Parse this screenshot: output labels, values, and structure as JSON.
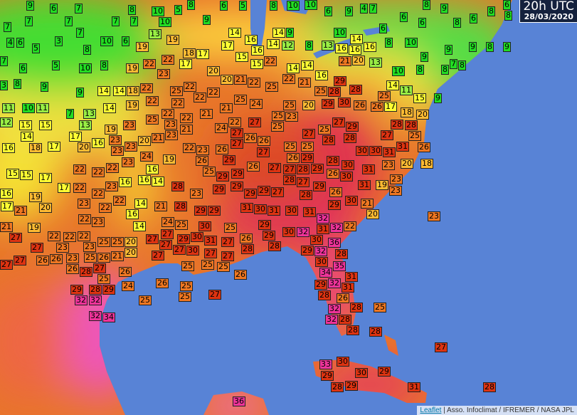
{
  "map": {
    "colors": {
      "ocean": "#5883d6",
      "cold": "#22dd22",
      "cool": "#99ee44",
      "mild": "#ffff33",
      "warm": "#ffbb33",
      "hot": "#ee7722",
      "very_hot": "#dd3311",
      "extreme": "#ee3399"
    },
    "timestamp": {
      "time": "20h UTC",
      "date": "28/03/2020"
    },
    "attribution": {
      "link": "Leaflet",
      "separator": " | ",
      "text": "Asso. Infoclimat / IFREMER / NASA JPL"
    },
    "temperature_unit_visible": false,
    "stations": [
      "9",
      "6",
      "7",
      "8",
      "10",
      "5",
      "8",
      "6",
      "5",
      "8",
      "10",
      "10",
      "6",
      "9",
      "4",
      "7",
      "8",
      "9",
      "6",
      "7",
      "7",
      "7",
      "7",
      "7",
      "10",
      "9",
      "14",
      "14",
      "9",
      "10",
      "14",
      "6",
      "6",
      "6",
      "8",
      "6",
      "8",
      "8",
      "4",
      "6",
      "5",
      "3",
      "7",
      "8",
      "10",
      "6",
      "19",
      "13",
      "19",
      "18",
      "17",
      "17",
      "16",
      "16",
      "14",
      "12",
      "8",
      "13",
      "16",
      "16",
      "16",
      "8",
      "10",
      "9",
      "9",
      "7",
      "8",
      "9",
      "8",
      "9",
      "7",
      "6",
      "5",
      "10",
      "8",
      "19",
      "22",
      "22",
      "17",
      "20",
      "15",
      "15",
      "22",
      "14",
      "14",
      "16",
      "21",
      "20",
      "13",
      "10",
      "8",
      "8",
      "3",
      "8",
      "9",
      "9",
      "14",
      "14",
      "18",
      "22",
      "23",
      "25",
      "22",
      "22",
      "22",
      "20",
      "21",
      "22",
      "25",
      "22",
      "21",
      "25",
      "28",
      "29",
      "28",
      "25",
      "14",
      "11",
      "15",
      "9",
      "11",
      "10",
      "11",
      "7",
      "13",
      "14",
      "19",
      "22",
      "22",
      "25",
      "22",
      "22",
      "21",
      "21",
      "25",
      "24",
      "25",
      "25",
      "20",
      "29",
      "30",
      "26",
      "26",
      "17",
      "18",
      "20",
      "12",
      "15",
      "15",
      "13",
      "19",
      "23",
      "23",
      "23",
      "21",
      "24",
      "22",
      "27",
      "27",
      "25",
      "23",
      "27",
      "25",
      "27",
      "29",
      "27",
      "28",
      "28",
      "25",
      "14",
      "17",
      "20",
      "16",
      "23",
      "23",
      "23",
      "20",
      "21",
      "22",
      "23",
      "26",
      "27",
      "26",
      "26",
      "25",
      "25",
      "28",
      "28",
      "30",
      "30",
      "31",
      "31",
      "26",
      "16",
      "18",
      "17",
      "24",
      "19",
      "26",
      "29",
      "27",
      "26",
      "29",
      "28",
      "30",
      "31",
      "23",
      "20",
      "18",
      "15",
      "15",
      "17",
      "22",
      "22",
      "22",
      "23",
      "16",
      "14",
      "28",
      "25",
      "29",
      "29",
      "26",
      "27",
      "27",
      "28",
      "28",
      "29",
      "26",
      "30",
      "23",
      "19",
      "23",
      "16",
      "17",
      "19",
      "17",
      "22",
      "22",
      "23",
      "16",
      "16",
      "23",
      "29",
      "29",
      "29",
      "29",
      "27",
      "27",
      "28",
      "29",
      "26",
      "31",
      "21",
      "20",
      "23",
      "22",
      "22",
      "16",
      "14",
      "21",
      "28",
      "29",
      "29",
      "31",
      "30",
      "31",
      "30",
      "31",
      "29",
      "30",
      "21",
      "20",
      "23",
      "21",
      "27",
      "19",
      "22",
      "22",
      "23",
      "14",
      "24",
      "25",
      "30",
      "25",
      "29",
      "30",
      "32",
      "32",
      "32",
      "22",
      "27",
      "22",
      "22",
      "23",
      "23",
      "23",
      "25",
      "25",
      "20",
      "27",
      "27",
      "27",
      "29",
      "30",
      "31",
      "27",
      "26",
      "29",
      "28",
      "30",
      "31",
      "27",
      "26",
      "26",
      "25",
      "26",
      "21",
      "20",
      "27",
      "27",
      "30",
      "27",
      "27",
      "28",
      "29",
      "36",
      "28",
      "32",
      "27",
      "26",
      "27",
      "28",
      "25",
      "26",
      "25",
      "25",
      "25",
      "26",
      "30",
      "34",
      "35",
      "32",
      "29",
      "28",
      "29",
      "24",
      "26",
      "25",
      "29",
      "31",
      "31",
      "32",
      "32",
      "25",
      "25",
      "27",
      "28",
      "26",
      "28",
      "25",
      "32",
      "34",
      "32",
      "28",
      "28",
      "32",
      "28",
      "27",
      "33",
      "30",
      "30",
      "29",
      "29",
      "28",
      "29",
      "31",
      "28",
      "36"
    ]
  }
}
